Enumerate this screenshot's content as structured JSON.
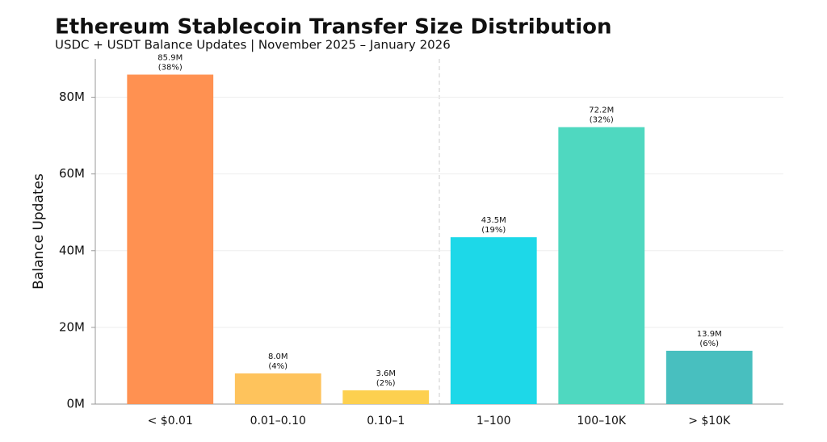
{
  "chart_data": {
    "type": "bar",
    "title": "Ethereum Stablecoin Transfer Size Distribution",
    "subtitle": "USDC + USDT Balance Updates | November 2025 – January 2026",
    "y_label": "Balance Updates",
    "categories": [
      "< $0.01",
      "0.01–0.10",
      "0.10–1",
      "1–100",
      "100–10K",
      "> $10K"
    ],
    "values": [
      85900000,
      8000000,
      3600000,
      43500000,
      72200000,
      13900000
    ],
    "value_labels": [
      "85.9M",
      "8.0M",
      "3.6M",
      "43.5M",
      "72.2M",
      "13.9M"
    ],
    "shares": [
      38,
      4,
      2,
      19,
      32,
      6
    ],
    "share_labels": [
      "(38%)",
      "(4%)",
      "(2%)",
      "(19%)",
      "(32%)",
      "(6%)"
    ],
    "colors": [
      "#ff9151",
      "#fec35c",
      "#fdd04f",
      "#1dd8e8",
      "#4fd8c0",
      "#48bfbf"
    ],
    "ylim": [
      0,
      90000000
    ],
    "yticks": [
      {
        "value": 0,
        "label": "0M"
      },
      {
        "value": 20000000,
        "label": "20M"
      },
      {
        "value": 40000000,
        "label": "40M"
      },
      {
        "value": 60000000,
        "label": "60M"
      },
      {
        "value": 80000000,
        "label": "80M"
      }
    ],
    "grid": true
  }
}
